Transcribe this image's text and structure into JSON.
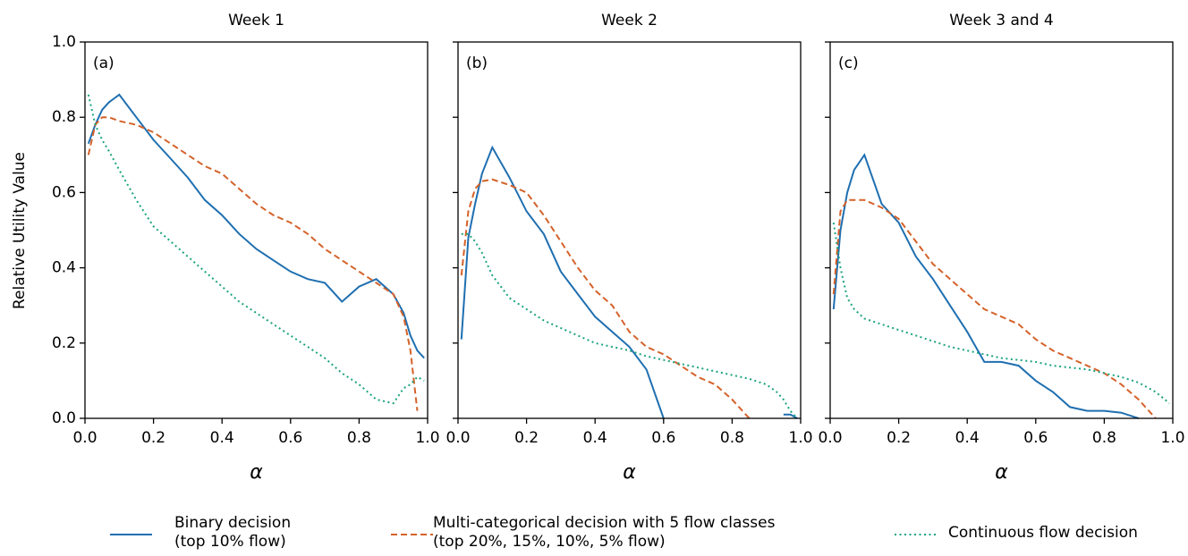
{
  "chart_data": [
    {
      "type": "line",
      "title": "Week 1",
      "annotation": "(a)",
      "xlabel": "α",
      "ylabel": "Relative Utility Value",
      "x": [
        0.01,
        0.03,
        0.05,
        0.07,
        0.1,
        0.15,
        0.2,
        0.25,
        0.3,
        0.35,
        0.4,
        0.45,
        0.5,
        0.55,
        0.6,
        0.65,
        0.7,
        0.75,
        0.8,
        0.85,
        0.9,
        0.93,
        0.95,
        0.97,
        0.99
      ],
      "xlim": [
        0,
        1
      ],
      "xticks": [
        {
          "value": 0,
          "label": "0.0"
        },
        0.2,
        0.4,
        0.6,
        0.8,
        {
          "value": 1,
          "label": "1.0"
        }
      ],
      "ylim": [
        0,
        1
      ],
      "yticks": [
        {
          "value": 0,
          "label": "0.0"
        },
        0.2,
        0.4,
        0.6,
        0.8,
        {
          "value": 1,
          "label": "1.0"
        }
      ],
      "series": [
        {
          "name": "Binary decision\n(top 10% flow)",
          "color": "#1f6fb0",
          "linestyle": "solid",
          "values": [
            0.73,
            0.78,
            0.82,
            0.84,
            0.86,
            0.8,
            0.74,
            0.69,
            0.64,
            0.58,
            0.54,
            0.49,
            0.45,
            0.42,
            0.39,
            0.37,
            0.36,
            0.31,
            0.35,
            0.37,
            0.33,
            0.28,
            0.22,
            0.18,
            0.16
          ]
        },
        {
          "name": "Multi-categorical decision with 5 flow classes\n(top 20%, 15%, 10%, 5% flow)",
          "color": "#d4622a",
          "linestyle": "dashed",
          "values": [
            0.7,
            0.78,
            0.8,
            0.8,
            0.79,
            0.78,
            0.76,
            0.73,
            0.7,
            0.67,
            0.65,
            0.61,
            0.57,
            0.54,
            0.52,
            0.49,
            0.45,
            0.42,
            0.39,
            0.36,
            0.33,
            0.27,
            0.18,
            0.02,
            null
          ]
        },
        {
          "name": "Continuous flow decision",
          "color": "#1aa37f",
          "linestyle": "dotted",
          "values": [
            0.86,
            0.78,
            0.74,
            0.71,
            0.66,
            0.58,
            0.51,
            0.47,
            0.43,
            0.39,
            0.35,
            0.31,
            0.28,
            0.25,
            0.22,
            0.19,
            0.16,
            0.12,
            0.09,
            0.05,
            0.04,
            0.08,
            0.09,
            0.11,
            0.1
          ]
        }
      ]
    },
    {
      "type": "line",
      "title": "Week 2",
      "annotation": "(b)",
      "xlabel": "α",
      "x": [
        0.01,
        0.03,
        0.05,
        0.07,
        0.1,
        0.15,
        0.2,
        0.25,
        0.3,
        0.35,
        0.4,
        0.45,
        0.5,
        0.55,
        0.6,
        0.65,
        0.7,
        0.75,
        0.8,
        0.85,
        0.9,
        0.93,
        0.95,
        0.97,
        0.99
      ],
      "xlim": [
        0,
        1
      ],
      "xticks": [
        {
          "value": 0,
          "label": "0.0"
        },
        0.2,
        0.4,
        0.6,
        0.8,
        {
          "value": 1,
          "label": "1.0"
        }
      ],
      "ylim": [
        0,
        1
      ],
      "yticks": [
        0,
        0.2,
        0.4,
        0.6,
        0.8,
        1
      ],
      "series": [
        {
          "color": "#1f6fb0",
          "linestyle": "solid",
          "values": [
            0.21,
            0.48,
            0.57,
            0.65,
            0.72,
            0.64,
            0.55,
            0.49,
            0.39,
            0.33,
            0.27,
            0.23,
            0.19,
            0.13,
            0.0,
            null,
            null,
            null,
            null,
            null,
            null,
            null,
            0.01,
            0.01,
            0.0
          ]
        },
        {
          "color": "#d4622a",
          "linestyle": "dashed",
          "values": [
            0.38,
            0.55,
            0.61,
            0.63,
            0.635,
            0.62,
            0.6,
            0.54,
            0.47,
            0.4,
            0.34,
            0.3,
            0.23,
            0.19,
            0.17,
            0.14,
            0.11,
            0.09,
            0.05,
            0.0,
            null,
            null,
            null,
            null,
            null
          ]
        },
        {
          "color": "#1aa37f",
          "linestyle": "dotted",
          "values": [
            0.49,
            0.49,
            0.47,
            0.44,
            0.38,
            0.32,
            0.29,
            0.26,
            0.24,
            0.22,
            0.2,
            0.19,
            0.18,
            0.165,
            0.155,
            0.145,
            0.135,
            0.125,
            0.115,
            0.105,
            0.09,
            0.07,
            0.05,
            0.02,
            0.0
          ]
        }
      ]
    },
    {
      "type": "line",
      "title": "Week 3 and 4",
      "annotation": "(c)",
      "xlabel": "α",
      "x": [
        0.01,
        0.03,
        0.05,
        0.07,
        0.1,
        0.15,
        0.2,
        0.25,
        0.3,
        0.35,
        0.4,
        0.45,
        0.5,
        0.55,
        0.6,
        0.65,
        0.7,
        0.75,
        0.8,
        0.85,
        0.9,
        0.93,
        0.95,
        0.97,
        0.99
      ],
      "xlim": [
        0,
        1
      ],
      "xticks": [
        {
          "value": 0,
          "label": "0.0"
        },
        0.2,
        0.4,
        0.6,
        0.8,
        {
          "value": 1,
          "label": "1.0"
        }
      ],
      "ylim": [
        0,
        1
      ],
      "yticks": [
        0,
        0.2,
        0.4,
        0.6,
        0.8,
        1
      ],
      "series": [
        {
          "color": "#1f6fb0",
          "linestyle": "solid",
          "values": [
            0.29,
            0.5,
            0.6,
            0.66,
            0.7,
            0.57,
            0.52,
            0.43,
            0.37,
            0.3,
            0.23,
            0.15,
            0.15,
            0.14,
            0.1,
            0.07,
            0.03,
            0.02,
            0.02,
            0.015,
            0.0,
            null,
            null,
            null,
            null
          ]
        },
        {
          "color": "#d4622a",
          "linestyle": "dashed",
          "values": [
            0.33,
            0.55,
            0.58,
            0.58,
            0.58,
            0.56,
            0.53,
            0.47,
            0.41,
            0.37,
            0.33,
            0.29,
            0.27,
            0.25,
            0.21,
            0.18,
            0.16,
            0.14,
            0.12,
            0.09,
            0.05,
            0.02,
            0.0,
            null,
            null
          ]
        },
        {
          "color": "#1aa37f",
          "linestyle": "dotted",
          "values": [
            0.52,
            0.4,
            0.32,
            0.29,
            0.265,
            0.25,
            0.235,
            0.22,
            0.205,
            0.19,
            0.18,
            0.17,
            0.16,
            0.155,
            0.15,
            0.14,
            0.135,
            0.13,
            0.12,
            0.11,
            0.095,
            0.08,
            0.07,
            0.055,
            0.04
          ]
        }
      ]
    }
  ]
}
